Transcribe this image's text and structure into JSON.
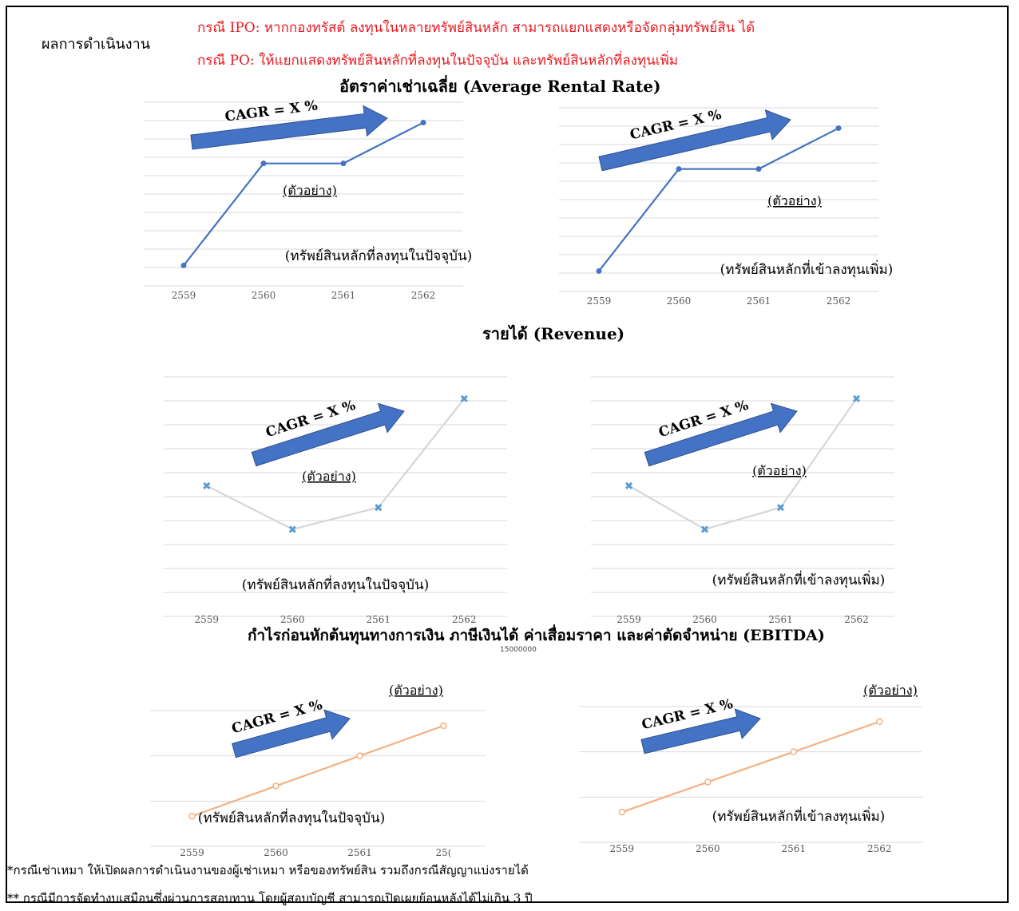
{
  "page": {
    "heading": "ผลการดำเนินงาน",
    "note_ipo": "กรณี IPO: หากกองทรัสต์ ลงทุนในหลายทรัพย์สินหลัก สามารถแยกแสดงหรือจัดกลุ่มทรัพย์สิน ได้",
    "note_po": "กรณี PO: ให้แยกแสดงทรัพย์สินหลักที่ลงทุนในปัจจุบัน และทรัพย์สินหลักที่ลงทุนเพิ่ม",
    "section_rental": "อัตราค่าเช่าเฉลี่ย (Average Rental Rate)",
    "section_revenue": "รายได้ (Revenue)",
    "section_ebitda": "กำไรก่อนหักต้นทุนทางการเงิน ภาษีเงินได้ ค่าเสื่อมราคา และค่าตัดจำหน่าย (EBITDA)",
    "footnote_1": "*กรณีเช่าเหมา ให้เปิดผลการดำเนินงานของผู้เช่าเหมา หรือของทรัพย์สิน รวมถึงกรณีสัญญาแบ่งรายได้",
    "footnote_2": "** กรณีมีการจัดทำงบเสมือนซึ่งผ่านการสอบทาน โดยผู้สอบบัญชี สามารถเปิดเผยย้อนหลังได้ไม่เกิน 3 ปี",
    "stray_label": "15000000",
    "colors": {
      "accent_red": "#e8191f",
      "arrow_blue": "#4472c4"
    }
  },
  "chart_data": [
    {
      "id": "rental_current",
      "type": "line",
      "categories": [
        "2559",
        "2560",
        "2561",
        "2562"
      ],
      "series": [
        {
          "values": [
            1,
            6,
            6,
            8
          ],
          "color": "#4472c4"
        }
      ],
      "ylim": [
        0,
        9
      ],
      "grid": true,
      "cagr_label": "CAGR = X %",
      "example_label": "(ตัวอย่าง)",
      "caption": "(ทรัพย์สินหลักที่ลงทุนในปัจจุบัน)"
    },
    {
      "id": "rental_added",
      "type": "line",
      "categories": [
        "2559",
        "2560",
        "2561",
        "2562"
      ],
      "series": [
        {
          "values": [
            1,
            6,
            6,
            8
          ],
          "color": "#4472c4"
        }
      ],
      "ylim": [
        0,
        9
      ],
      "grid": true,
      "cagr_label": "CAGR = X %",
      "example_label": "(ตัวอย่าง)",
      "caption": "(ทรัพย์สินหลักที่เข้าลงทุนเพิ่ม)"
    },
    {
      "id": "revenue_current",
      "type": "line",
      "categories": [
        "2559",
        "2560",
        "2561",
        "2562"
      ],
      "series": [
        {
          "values": [
            6,
            4,
            5,
            10
          ],
          "color": "#d6d6d6",
          "marker": "#5b9bd5"
        }
      ],
      "ylim": [
        0,
        11
      ],
      "grid": true,
      "cagr_label": "CAGR = X %",
      "example_label": "(ตัวอย่าง)",
      "caption": "(ทรัพย์สินหลักที่ลงทุนในปัจจุบัน)"
    },
    {
      "id": "revenue_added",
      "type": "line",
      "categories": [
        "2559",
        "2560",
        "2561",
        "2562"
      ],
      "series": [
        {
          "values": [
            6,
            4,
            5,
            10
          ],
          "color": "#d6d6d6",
          "marker": "#5b9bd5"
        }
      ],
      "ylim": [
        0,
        11
      ],
      "grid": true,
      "cagr_label": "CAGR = X %",
      "example_label": "(ตัวอย่าง)",
      "caption": "(ทรัพย์สินหลักที่เข้าลงทุนเพิ่ม)"
    },
    {
      "id": "ebitda_current",
      "type": "line",
      "categories": [
        "2559",
        "2560",
        "2561",
        "25("
      ],
      "series": [
        {
          "values": [
            1,
            2,
            3,
            4
          ],
          "color": "#f4b183"
        }
      ],
      "ylim": [
        0,
        4.5
      ],
      "grid": true,
      "cagr_label": "CAGR = X %",
      "example_label": "(ตัวอย่าง)",
      "caption": "(ทรัพย์สินหลักที่ลงทุนในปัจจุบัน)"
    },
    {
      "id": "ebitda_added",
      "type": "line",
      "categories": [
        "2559",
        "2560",
        "2561",
        "2562"
      ],
      "series": [
        {
          "values": [
            1,
            2,
            3,
            4
          ],
          "color": "#f4b183"
        }
      ],
      "ylim": [
        0,
        4.5
      ],
      "grid": true,
      "cagr_label": "CAGR = X %",
      "example_label": "(ตัวอย่าง)",
      "caption": "(ทรัพย์สินหลักที่เข้าลงทุนเพิ่ม)"
    }
  ]
}
